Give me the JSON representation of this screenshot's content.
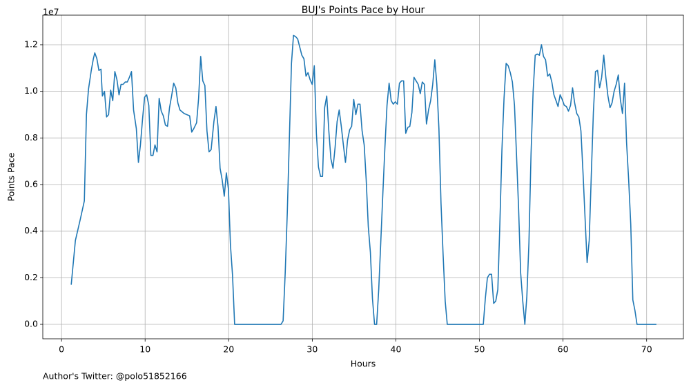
{
  "chart_data": {
    "type": "line",
    "title": "BUJ's Points Pace by Hour",
    "x_label": "Hours",
    "y_label": "Points Pace",
    "y_offset_label": "1e7",
    "annotation": "Author's Twitter: @polo51852166",
    "grid": true,
    "xlim": [
      -2.24,
      74.4
    ],
    "ylim": [
      -0.062,
      1.327
    ],
    "xticks": [
      0,
      10,
      20,
      30,
      40,
      50,
      60,
      70
    ],
    "yticks": [
      {
        "value": 0,
        "label": "0.0"
      },
      0.2,
      0.4,
      0.6,
      0.8,
      {
        "value": 1,
        "label": "1.0"
      },
      1.2
    ],
    "x": [
      1.16,
      1.66,
      2.24,
      2.73,
      2.98,
      3.23,
      3.56,
      3.81,
      3.98,
      4.23,
      4.47,
      4.72,
      4.89,
      5.14,
      5.39,
      5.63,
      5.88,
      6.13,
      6.38,
      6.63,
      6.88,
      7.12,
      7.37,
      7.62,
      7.87,
      8.12,
      8.37,
      8.62,
      8.95,
      9.2,
      9.44,
      9.69,
      9.94,
      10.19,
      10.44,
      10.69,
      10.94,
      11.18,
      11.43,
      11.68,
      11.93,
      12.18,
      12.43,
      12.68,
      12.92,
      13.17,
      13.42,
      13.67,
      13.92,
      14.17,
      14.66,
      14.99,
      15.33,
      15.58,
      15.82,
      16.16,
      16.4,
      16.65,
      16.9,
      17.15,
      17.4,
      17.65,
      17.9,
      18.23,
      18.48,
      18.72,
      18.97,
      19.22,
      19.47,
      19.72,
      19.97,
      20.21,
      20.46,
      20.71,
      22,
      23,
      24,
      25,
      26.26,
      26.51,
      26.76,
      27.01,
      27.26,
      27.51,
      27.75,
      28.0,
      28.25,
      28.5,
      28.75,
      29.0,
      29.25,
      29.49,
      29.74,
      29.99,
      30.24,
      30.49,
      30.74,
      30.99,
      31.23,
      31.48,
      31.73,
      31.98,
      32.23,
      32.48,
      32.73,
      32.97,
      33.22,
      33.47,
      33.72,
      33.97,
      34.22,
      34.47,
      34.71,
      34.96,
      35.21,
      35.46,
      35.71,
      35.96,
      36.21,
      36.45,
      36.7,
      36.95,
      37.2,
      37.45,
      37.7,
      37.95,
      38.19,
      38.44,
      38.69,
      38.94,
      39.19,
      39.44,
      39.69,
      39.93,
      40.18,
      40.43,
      40.68,
      40.93,
      41.18,
      41.43,
      41.67,
      41.92,
      42.17,
      42.42,
      42.67,
      42.92,
      43.16,
      43.41,
      43.66,
      43.91,
      44.16,
      44.41,
      44.66,
      44.9,
      45.15,
      45.4,
      45.65,
      45.9,
      46.15,
      47,
      48,
      49,
      50.46,
      50.7,
      50.95,
      51.2,
      51.45,
      51.7,
      51.95,
      52.2,
      52.44,
      52.69,
      52.94,
      53.19,
      53.44,
      53.69,
      53.94,
      54.19,
      54.43,
      54.68,
      54.93,
      55.18,
      55.43,
      55.67,
      55.92,
      56.17,
      56.42,
      56.67,
      56.92,
      57.17,
      57.42,
      57.66,
      57.91,
      58.16,
      58.41,
      58.66,
      58.91,
      59.16,
      59.4,
      59.65,
      59.9,
      60.15,
      60.4,
      60.65,
      60.9,
      61.14,
      61.39,
      61.64,
      61.89,
      62.14,
      62.39,
      62.63,
      62.88,
      63.13,
      63.38,
      63.63,
      63.88,
      64.13,
      64.37,
      64.62,
      64.87,
      65.12,
      65.37,
      65.62,
      65.86,
      66.11,
      66.36,
      66.61,
      66.86,
      67.11,
      67.36,
      67.6,
      67.85,
      68.1,
      68.35,
      68.6,
      68.85,
      70,
      71.17
    ],
    "series": [
      {
        "name": "Points Pace",
        "color": "#1f77b4",
        "values": [
          0.17,
          0.36,
          0.45,
          0.53,
          0.9,
          1.01,
          1.09,
          1.14,
          1.165,
          1.14,
          1.09,
          1.095,
          0.98,
          1.0,
          0.89,
          0.9,
          1.005,
          0.96,
          1.085,
          1.05,
          0.985,
          1.03,
          1.03,
          1.04,
          1.04,
          1.06,
          1.085,
          0.92,
          0.84,
          0.695,
          0.77,
          0.88,
          0.975,
          0.985,
          0.94,
          0.725,
          0.725,
          0.77,
          0.74,
          0.97,
          0.915,
          0.895,
          0.855,
          0.85,
          0.93,
          0.98,
          1.035,
          1.015,
          0.95,
          0.92,
          0.905,
          0.9,
          0.895,
          0.825,
          0.84,
          0.865,
          0.97,
          1.15,
          1.045,
          1.025,
          0.83,
          0.74,
          0.75,
          0.87,
          0.935,
          0.85,
          0.67,
          0.62,
          0.55,
          0.65,
          0.58,
          0.34,
          0.21,
          0,
          0,
          0,
          0,
          0,
          0,
          0.015,
          0.22,
          0.48,
          0.8,
          1.12,
          1.24,
          1.235,
          1.225,
          1.19,
          1.155,
          1.14,
          1.065,
          1.08,
          1.05,
          1.03,
          1.11,
          0.82,
          0.675,
          0.635,
          0.635,
          0.93,
          0.98,
          0.83,
          0.71,
          0.67,
          0.76,
          0.87,
          0.92,
          0.85,
          0.77,
          0.695,
          0.79,
          0.835,
          0.85,
          0.965,
          0.9,
          0.945,
          0.945,
          0.83,
          0.77,
          0.62,
          0.42,
          0.31,
          0.11,
          0,
          0,
          0.15,
          0.35,
          0.56,
          0.76,
          0.94,
          1.035,
          0.96,
          0.945,
          0.955,
          0.945,
          1.035,
          1.045,
          1.045,
          0.82,
          0.845,
          0.85,
          0.91,
          1.06,
          1.045,
          1.03,
          0.99,
          1.04,
          1.03,
          0.86,
          0.92,
          0.96,
          1.03,
          1.135,
          1.03,
          0.84,
          0.52,
          0.3,
          0.1,
          0,
          0,
          0,
          0,
          0,
          0.11,
          0.2,
          0.215,
          0.215,
          0.09,
          0.1,
          0.15,
          0.43,
          0.75,
          0.97,
          1.12,
          1.11,
          1.08,
          1.04,
          0.94,
          0.73,
          0.5,
          0.22,
          0.1,
          0,
          0.12,
          0.35,
          0.73,
          1.0,
          1.155,
          1.16,
          1.155,
          1.2,
          1.15,
          1.135,
          1.065,
          1.075,
          1.04,
          0.985,
          0.96,
          0.935,
          0.985,
          0.965,
          0.94,
          0.935,
          0.915,
          0.94,
          1.015,
          0.95,
          0.905,
          0.89,
          0.83,
          0.65,
          0.46,
          0.265,
          0.36,
          0.64,
          0.91,
          1.085,
          1.09,
          1.015,
          1.06,
          1.155,
          1.06,
          0.98,
          0.93,
          0.95,
          1.0,
          1.03,
          1.07,
          0.965,
          0.905,
          1.035,
          0.78,
          0.62,
          0.43,
          0.105,
          0.06,
          0,
          0,
          0
        ]
      }
    ]
  }
}
